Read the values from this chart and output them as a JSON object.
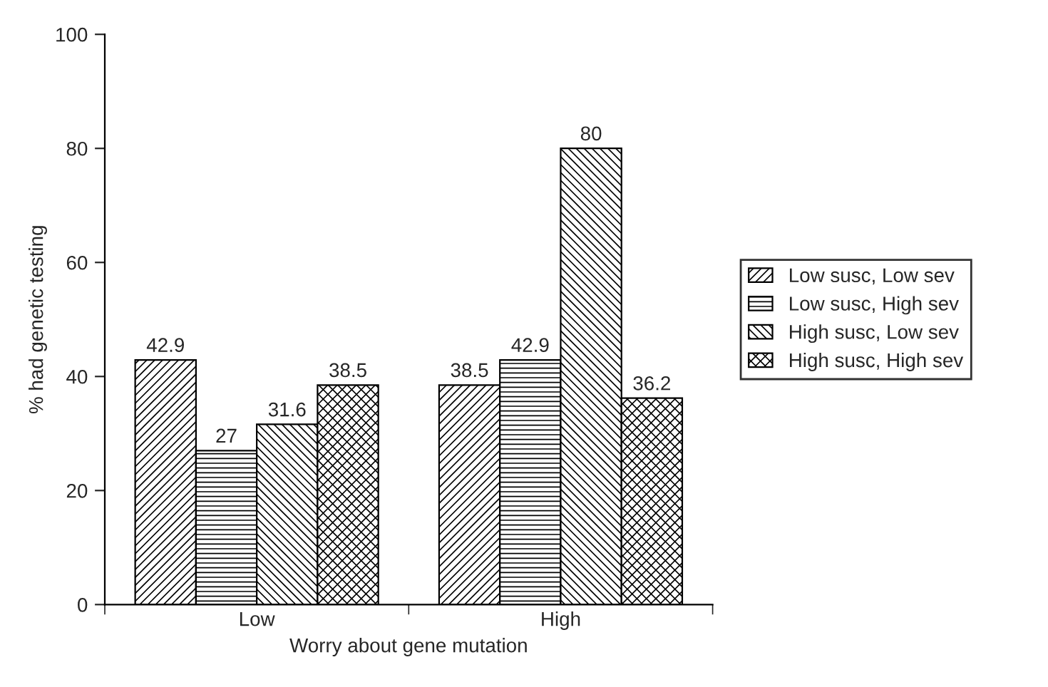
{
  "chart_data": {
    "type": "bar",
    "xlabel": "Worry about gene mutation",
    "ylabel": "% had genetic testing",
    "categories": [
      "Low",
      "High"
    ],
    "series": [
      {
        "name": "Low susc, Low sev",
        "color": "#000000",
        "values": [
          42.9,
          38.5
        ]
      },
      {
        "name": "Low susc, High sev",
        "color": "#000000",
        "values": [
          27,
          42.9
        ]
      },
      {
        "name": "High susc, Low sev",
        "color": "#000000",
        "values": [
          31.6,
          80
        ]
      },
      {
        "name": "High susc, High sev",
        "color": "#000000",
        "values": [
          38.5,
          36.2
        ]
      }
    ],
    "ylim": [
      0,
      100
    ],
    "yticks": [
      0,
      20,
      40,
      60,
      80,
      100
    ],
    "data_labels": true,
    "grid": false,
    "legend": "right"
  }
}
